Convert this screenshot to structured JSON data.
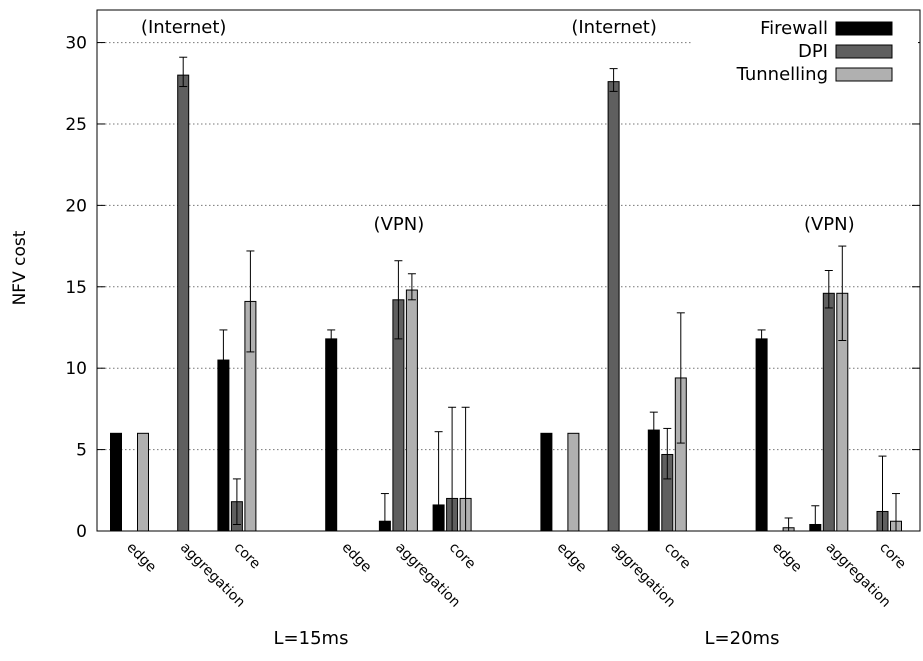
{
  "chart_data": {
    "type": "bar",
    "ylabel": "NFV cost",
    "xlabel": "",
    "ylim": [
      0,
      32
    ],
    "yticks": [
      0,
      5,
      10,
      15,
      20,
      25,
      30
    ],
    "grid": "horizontal dotted",
    "legend": {
      "placement": "top-right",
      "entries": [
        {
          "name": "Firewall",
          "color": "#000000"
        },
        {
          "name": "DPI",
          "color": "#5f5f5f"
        },
        {
          "name": "Tunnelling",
          "color": "#b0b0b0"
        }
      ]
    },
    "groups": [
      {
        "label": "L=15ms",
        "scenarios": [
          {
            "label": "(Internet)",
            "tiers": [
              {
                "label": "edge",
                "firewall": 6.0,
                "dpi": 0.0,
                "tunnelling": 6.0
              },
              {
                "label": "aggregation",
                "firewall": 0.0,
                "dpi": 28.0,
                "dpi_err": [
                  27.3,
                  29.1
                ],
                "tunnelling": 0.0
              },
              {
                "label": "core",
                "firewall": 10.5,
                "firewall_err": [
                  0,
                  12.35
                ],
                "dpi": 1.8,
                "dpi_err": [
                  0.4,
                  3.2
                ],
                "tunnelling": 14.1,
                "tunnelling_err": [
                  11.0,
                  17.2
                ]
              }
            ]
          },
          {
            "label": "(VPN)",
            "tiers": [
              {
                "label": "edge",
                "firewall": 11.8,
                "firewall_err": [
                  0,
                  12.35
                ],
                "dpi": 0.0,
                "tunnelling": 0.0
              },
              {
                "label": "aggregation",
                "firewall": 0.6,
                "firewall_err": [
                  0,
                  2.3
                ],
                "dpi": 14.2,
                "dpi_err": [
                  11.8,
                  16.6
                ],
                "tunnelling": 14.8,
                "tunnelling_err": [
                  14.2,
                  15.8
                ]
              },
              {
                "label": "core",
                "firewall": 1.6,
                "firewall_err": [
                  0,
                  6.1
                ],
                "dpi": 2.0,
                "dpi_err": [
                  0,
                  7.6
                ],
                "tunnelling": 2.0,
                "tunnelling_err": [
                  0,
                  7.6
                ]
              }
            ]
          }
        ]
      },
      {
        "label": "L=20ms",
        "scenarios": [
          {
            "label": "(Internet)",
            "tiers": [
              {
                "label": "edge",
                "firewall": 6.0,
                "dpi": 0.0,
                "tunnelling": 6.0
              },
              {
                "label": "aggregation",
                "firewall": 0.0,
                "dpi": 27.6,
                "dpi_err": [
                  27.0,
                  28.4
                ],
                "tunnelling": 0.0
              },
              {
                "label": "core",
                "firewall": 6.2,
                "firewall_err": [
                  0,
                  7.3
                ],
                "dpi": 4.7,
                "dpi_err": [
                  3.2,
                  6.3
                ],
                "tunnelling": 9.4,
                "tunnelling_err": [
                  5.4,
                  13.4
                ]
              }
            ]
          },
          {
            "label": "(VPN)",
            "tiers": [
              {
                "label": "edge",
                "firewall": 11.8,
                "firewall_err": [
                  0,
                  12.35
                ],
                "dpi": 0.0,
                "tunnelling": 0.2,
                "tunnelling_err": [
                  0,
                  0.8
                ]
              },
              {
                "label": "aggregation",
                "firewall": 0.4,
                "firewall_err": [
                  0,
                  1.55
                ],
                "dpi": 14.6,
                "dpi_err": [
                  13.7,
                  16.0
                ],
                "tunnelling": 14.6,
                "tunnelling_err": [
                  11.7,
                  17.5
                ]
              },
              {
                "label": "core",
                "firewall": 0.0,
                "dpi": 1.2,
                "dpi_err": [
                  0,
                  4.6
                ],
                "tunnelling": 0.6,
                "tunnelling_err": [
                  0,
                  2.3
                ]
              }
            ]
          }
        ]
      }
    ]
  }
}
